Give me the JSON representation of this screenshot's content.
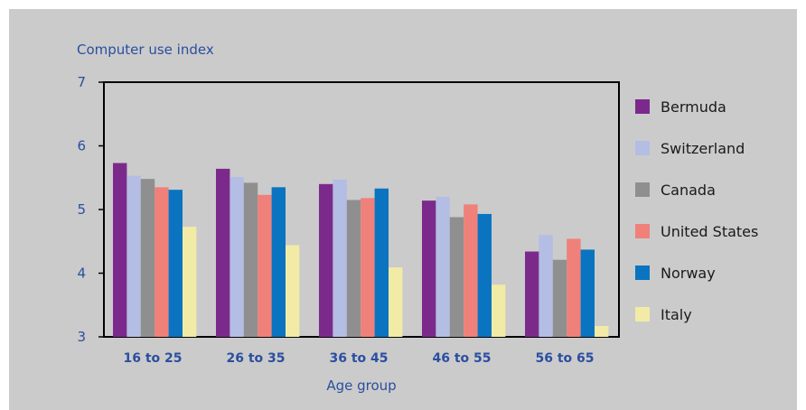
{
  "chart_data": {
    "type": "bar",
    "ylabel": "Computer use index",
    "xlabel": "Age group",
    "ylim": [
      3,
      7
    ],
    "yticks": [
      "7",
      "6",
      "5",
      "4",
      "3"
    ],
    "categories": [
      "16 to 25",
      "26 to 35",
      "36 to 45",
      "46 to 55",
      "56 to 65"
    ],
    "legend_position": "right",
    "series": [
      {
        "name": "Bermuda",
        "color": "#7b2a8c",
        "values": [
          5.73,
          5.64,
          5.4,
          5.14,
          4.34
        ]
      },
      {
        "name": "Switzerland",
        "color": "#b4bde3",
        "values": [
          5.53,
          5.51,
          5.47,
          5.2,
          4.6
        ]
      },
      {
        "name": "Canada",
        "color": "#8f8f8f",
        "values": [
          5.48,
          5.42,
          5.15,
          4.88,
          4.21
        ]
      },
      {
        "name": "United States",
        "color": "#f0807a",
        "values": [
          5.35,
          5.23,
          5.18,
          5.08,
          4.54
        ]
      },
      {
        "name": "Norway",
        "color": "#0a74c0",
        "values": [
          5.31,
          5.35,
          5.33,
          4.93,
          4.37
        ]
      },
      {
        "name": "Italy",
        "color": "#f2eba6",
        "values": [
          4.73,
          4.44,
          4.09,
          3.82,
          3.17
        ]
      }
    ]
  }
}
